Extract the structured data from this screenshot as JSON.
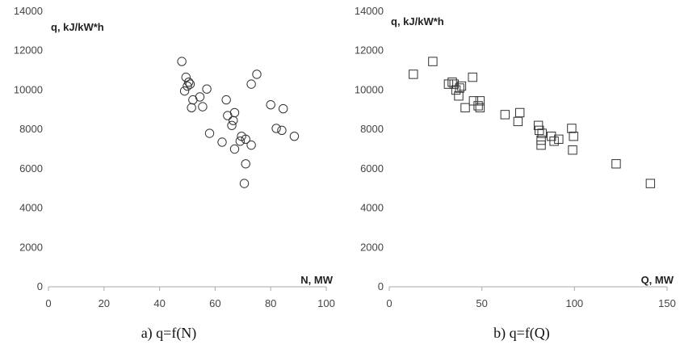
{
  "chart_data": [
    {
      "type": "scatter",
      "marker": "circle",
      "caption": "a) q=f(N)",
      "xlabel": "N, MW",
      "ylabel": "q, kJ/kW*h",
      "xlim": [
        0,
        100
      ],
      "ylim": [
        0,
        14000
      ],
      "xticks": [
        0,
        20,
        40,
        60,
        80,
        100
      ],
      "yticks": [
        0,
        2000,
        4000,
        6000,
        8000,
        10000,
        12000,
        14000
      ],
      "grid": false,
      "points": [
        {
          "x": 48,
          "y": 11450
        },
        {
          "x": 49.5,
          "y": 10650
        },
        {
          "x": 50,
          "y": 10200
        },
        {
          "x": 50.5,
          "y": 10400
        },
        {
          "x": 51,
          "y": 10300
        },
        {
          "x": 49,
          "y": 9950
        },
        {
          "x": 52,
          "y": 9500
        },
        {
          "x": 51.5,
          "y": 9100
        },
        {
          "x": 54.5,
          "y": 9650
        },
        {
          "x": 55.5,
          "y": 9150
        },
        {
          "x": 57,
          "y": 10050
        },
        {
          "x": 58,
          "y": 7800
        },
        {
          "x": 62.5,
          "y": 7350
        },
        {
          "x": 64,
          "y": 9500
        },
        {
          "x": 64.5,
          "y": 8700
        },
        {
          "x": 66,
          "y": 8200
        },
        {
          "x": 66.5,
          "y": 8450
        },
        {
          "x": 67,
          "y": 8850
        },
        {
          "x": 67,
          "y": 7000
        },
        {
          "x": 69,
          "y": 7400
        },
        {
          "x": 69.5,
          "y": 7650
        },
        {
          "x": 71,
          "y": 7500
        },
        {
          "x": 71,
          "y": 6250
        },
        {
          "x": 70.5,
          "y": 5250
        },
        {
          "x": 73,
          "y": 7200
        },
        {
          "x": 73,
          "y": 10300
        },
        {
          "x": 75,
          "y": 10800
        },
        {
          "x": 80,
          "y": 9250
        },
        {
          "x": 82,
          "y": 8050
        },
        {
          "x": 84,
          "y": 7950
        },
        {
          "x": 84.5,
          "y": 9050
        },
        {
          "x": 88.5,
          "y": 7650
        }
      ]
    },
    {
      "type": "scatter",
      "marker": "square",
      "caption": "b) q=f(Q)",
      "xlabel": "Q, MW",
      "ylabel": "q, kJ/kW*h",
      "xlim": [
        0,
        150
      ],
      "ylim": [
        0,
        14000
      ],
      "xticks": [
        0,
        50,
        100,
        150
      ],
      "yticks": [
        0,
        2000,
        4000,
        6000,
        8000,
        10000,
        12000,
        14000
      ],
      "grid": false,
      "points": [
        {
          "x": 13,
          "y": 10800
        },
        {
          "x": 23.5,
          "y": 11450
        },
        {
          "x": 32,
          "y": 10300
        },
        {
          "x": 34,
          "y": 10400
        },
        {
          "x": 35,
          "y": 10300
        },
        {
          "x": 36,
          "y": 10000
        },
        {
          "x": 37.5,
          "y": 9700
        },
        {
          "x": 38,
          "y": 10100
        },
        {
          "x": 39,
          "y": 10200
        },
        {
          "x": 41,
          "y": 9100
        },
        {
          "x": 45,
          "y": 10650
        },
        {
          "x": 45.5,
          "y": 9450
        },
        {
          "x": 48,
          "y": 9200
        },
        {
          "x": 49,
          "y": 9450
        },
        {
          "x": 49,
          "y": 9100
        },
        {
          "x": 62.5,
          "y": 8750
        },
        {
          "x": 69.5,
          "y": 8400
        },
        {
          "x": 70.5,
          "y": 8850
        },
        {
          "x": 80.5,
          "y": 8200
        },
        {
          "x": 81,
          "y": 7950
        },
        {
          "x": 82.5,
          "y": 7800
        },
        {
          "x": 82,
          "y": 7450
        },
        {
          "x": 82,
          "y": 7200
        },
        {
          "x": 87.5,
          "y": 7650
        },
        {
          "x": 89,
          "y": 7400
        },
        {
          "x": 91.5,
          "y": 7500
        },
        {
          "x": 98.5,
          "y": 8050
        },
        {
          "x": 99.5,
          "y": 7650
        },
        {
          "x": 99,
          "y": 6950
        },
        {
          "x": 122.5,
          "y": 6250
        },
        {
          "x": 141,
          "y": 5250
        }
      ]
    }
  ]
}
